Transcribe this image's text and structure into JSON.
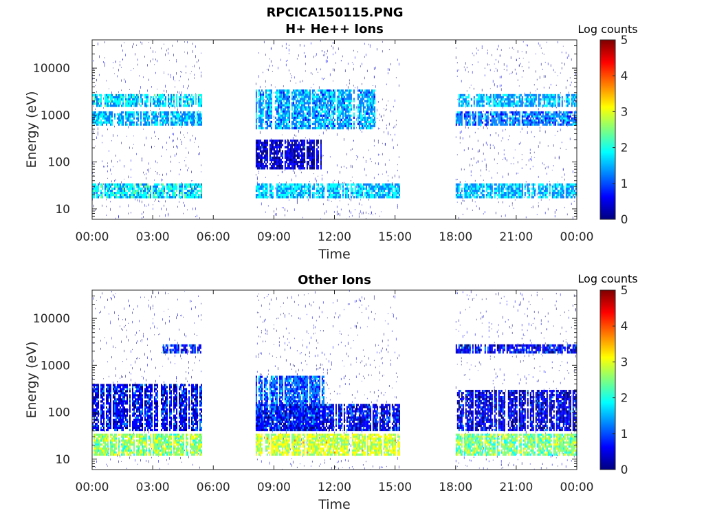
{
  "figure_title": "RPCICA150115.PNG",
  "colormap": [
    "#00007f",
    "#0000ff",
    "#007fff",
    "#00ffff",
    "#7fff7f",
    "#ffff00",
    "#ff7f00",
    "#ff0000",
    "#7f0000"
  ],
  "chart_data": [
    {
      "type": "heatmap",
      "title": "H+ He++ Ions",
      "xlabel": "Time",
      "ylabel": "Energy (eV)",
      "x_ticks": [
        "00:00",
        "03:00",
        "06:00",
        "09:00",
        "12:00",
        "15:00",
        "18:00",
        "21:00",
        "00:00"
      ],
      "xlim_hours": [
        0,
        24
      ],
      "y_ticks": [
        "10",
        "100",
        "1000",
        "10000"
      ],
      "y_tick_values": [
        10,
        100,
        1000,
        10000
      ],
      "ylim": [
        6,
        40000
      ],
      "y_scale": "log",
      "colorbar": {
        "label": "Log counts",
        "ticks": [
          "0",
          "1",
          "2",
          "3",
          "4",
          "5"
        ],
        "range": [
          0,
          5
        ]
      },
      "data_intervals_hours": [
        [
          0,
          5.4
        ],
        [
          8.1,
          15.2
        ],
        [
          18.0,
          24
        ]
      ],
      "bands": [
        {
          "hours": [
            0,
            5.4
          ],
          "energy": [
            17,
            35
          ],
          "log_counts": 1.8
        },
        {
          "hours": [
            0,
            5.4
          ],
          "energy": [
            1500,
            2800
          ],
          "log_counts": 1.7
        },
        {
          "hours": [
            0,
            5.4
          ],
          "energy": [
            600,
            1200
          ],
          "log_counts": 1.5
        },
        {
          "hours": [
            8.1,
            15.2
          ],
          "energy": [
            17,
            35
          ],
          "log_counts": 1.6
        },
        {
          "hours": [
            8.1,
            11.3
          ],
          "energy": [
            70,
            300
          ],
          "log_counts": 0.4
        },
        {
          "hours": [
            8.1,
            14.0
          ],
          "energy": [
            500,
            3500
          ],
          "log_counts": 1.4
        },
        {
          "hours": [
            18.0,
            24
          ],
          "energy": [
            17,
            35
          ],
          "log_counts": 1.5
        },
        {
          "hours": [
            18.0,
            24
          ],
          "energy": [
            1500,
            2800
          ],
          "log_counts": 1.5
        },
        {
          "hours": [
            18.0,
            24
          ],
          "energy": [
            600,
            1200
          ],
          "log_counts": 1.2
        }
      ]
    },
    {
      "type": "heatmap",
      "title": "Other Ions",
      "xlabel": "Time",
      "ylabel": "Energy (eV)",
      "x_ticks": [
        "00:00",
        "03:00",
        "06:00",
        "09:00",
        "12:00",
        "15:00",
        "18:00",
        "21:00",
        "00:00"
      ],
      "xlim_hours": [
        0,
        24
      ],
      "y_ticks": [
        "10",
        "100",
        "1000",
        "10000"
      ],
      "y_tick_values": [
        10,
        100,
        1000,
        10000
      ],
      "ylim": [
        6,
        40000
      ],
      "y_scale": "log",
      "colorbar": {
        "label": "Log counts",
        "ticks": [
          "0",
          "1",
          "2",
          "3",
          "4",
          "5"
        ],
        "range": [
          0,
          5
        ]
      },
      "data_intervals_hours": [
        [
          0,
          5.4
        ],
        [
          8.1,
          15.2
        ],
        [
          18.0,
          24
        ]
      ],
      "bands": [
        {
          "hours": [
            0,
            5.4
          ],
          "energy": [
            12,
            35
          ],
          "log_counts": 2.6
        },
        {
          "hours": [
            0,
            5.4
          ],
          "energy": [
            40,
            400
          ],
          "log_counts": 0.6
        },
        {
          "hours": [
            3.5,
            5.4
          ],
          "energy": [
            1800,
            2800
          ],
          "log_counts": 0.7
        },
        {
          "hours": [
            8.1,
            15.2
          ],
          "energy": [
            12,
            35
          ],
          "log_counts": 2.9
        },
        {
          "hours": [
            8.1,
            11.5
          ],
          "energy": [
            40,
            600
          ],
          "log_counts": 1.1
        },
        {
          "hours": [
            8.1,
            15.2
          ],
          "energy": [
            40,
            150
          ],
          "log_counts": 0.6
        },
        {
          "hours": [
            18.0,
            24
          ],
          "energy": [
            12,
            35
          ],
          "log_counts": 2.5
        },
        {
          "hours": [
            18.0,
            24
          ],
          "energy": [
            40,
            300
          ],
          "log_counts": 0.5
        },
        {
          "hours": [
            18.0,
            24
          ],
          "energy": [
            1800,
            2800
          ],
          "log_counts": 0.6
        }
      ]
    }
  ]
}
